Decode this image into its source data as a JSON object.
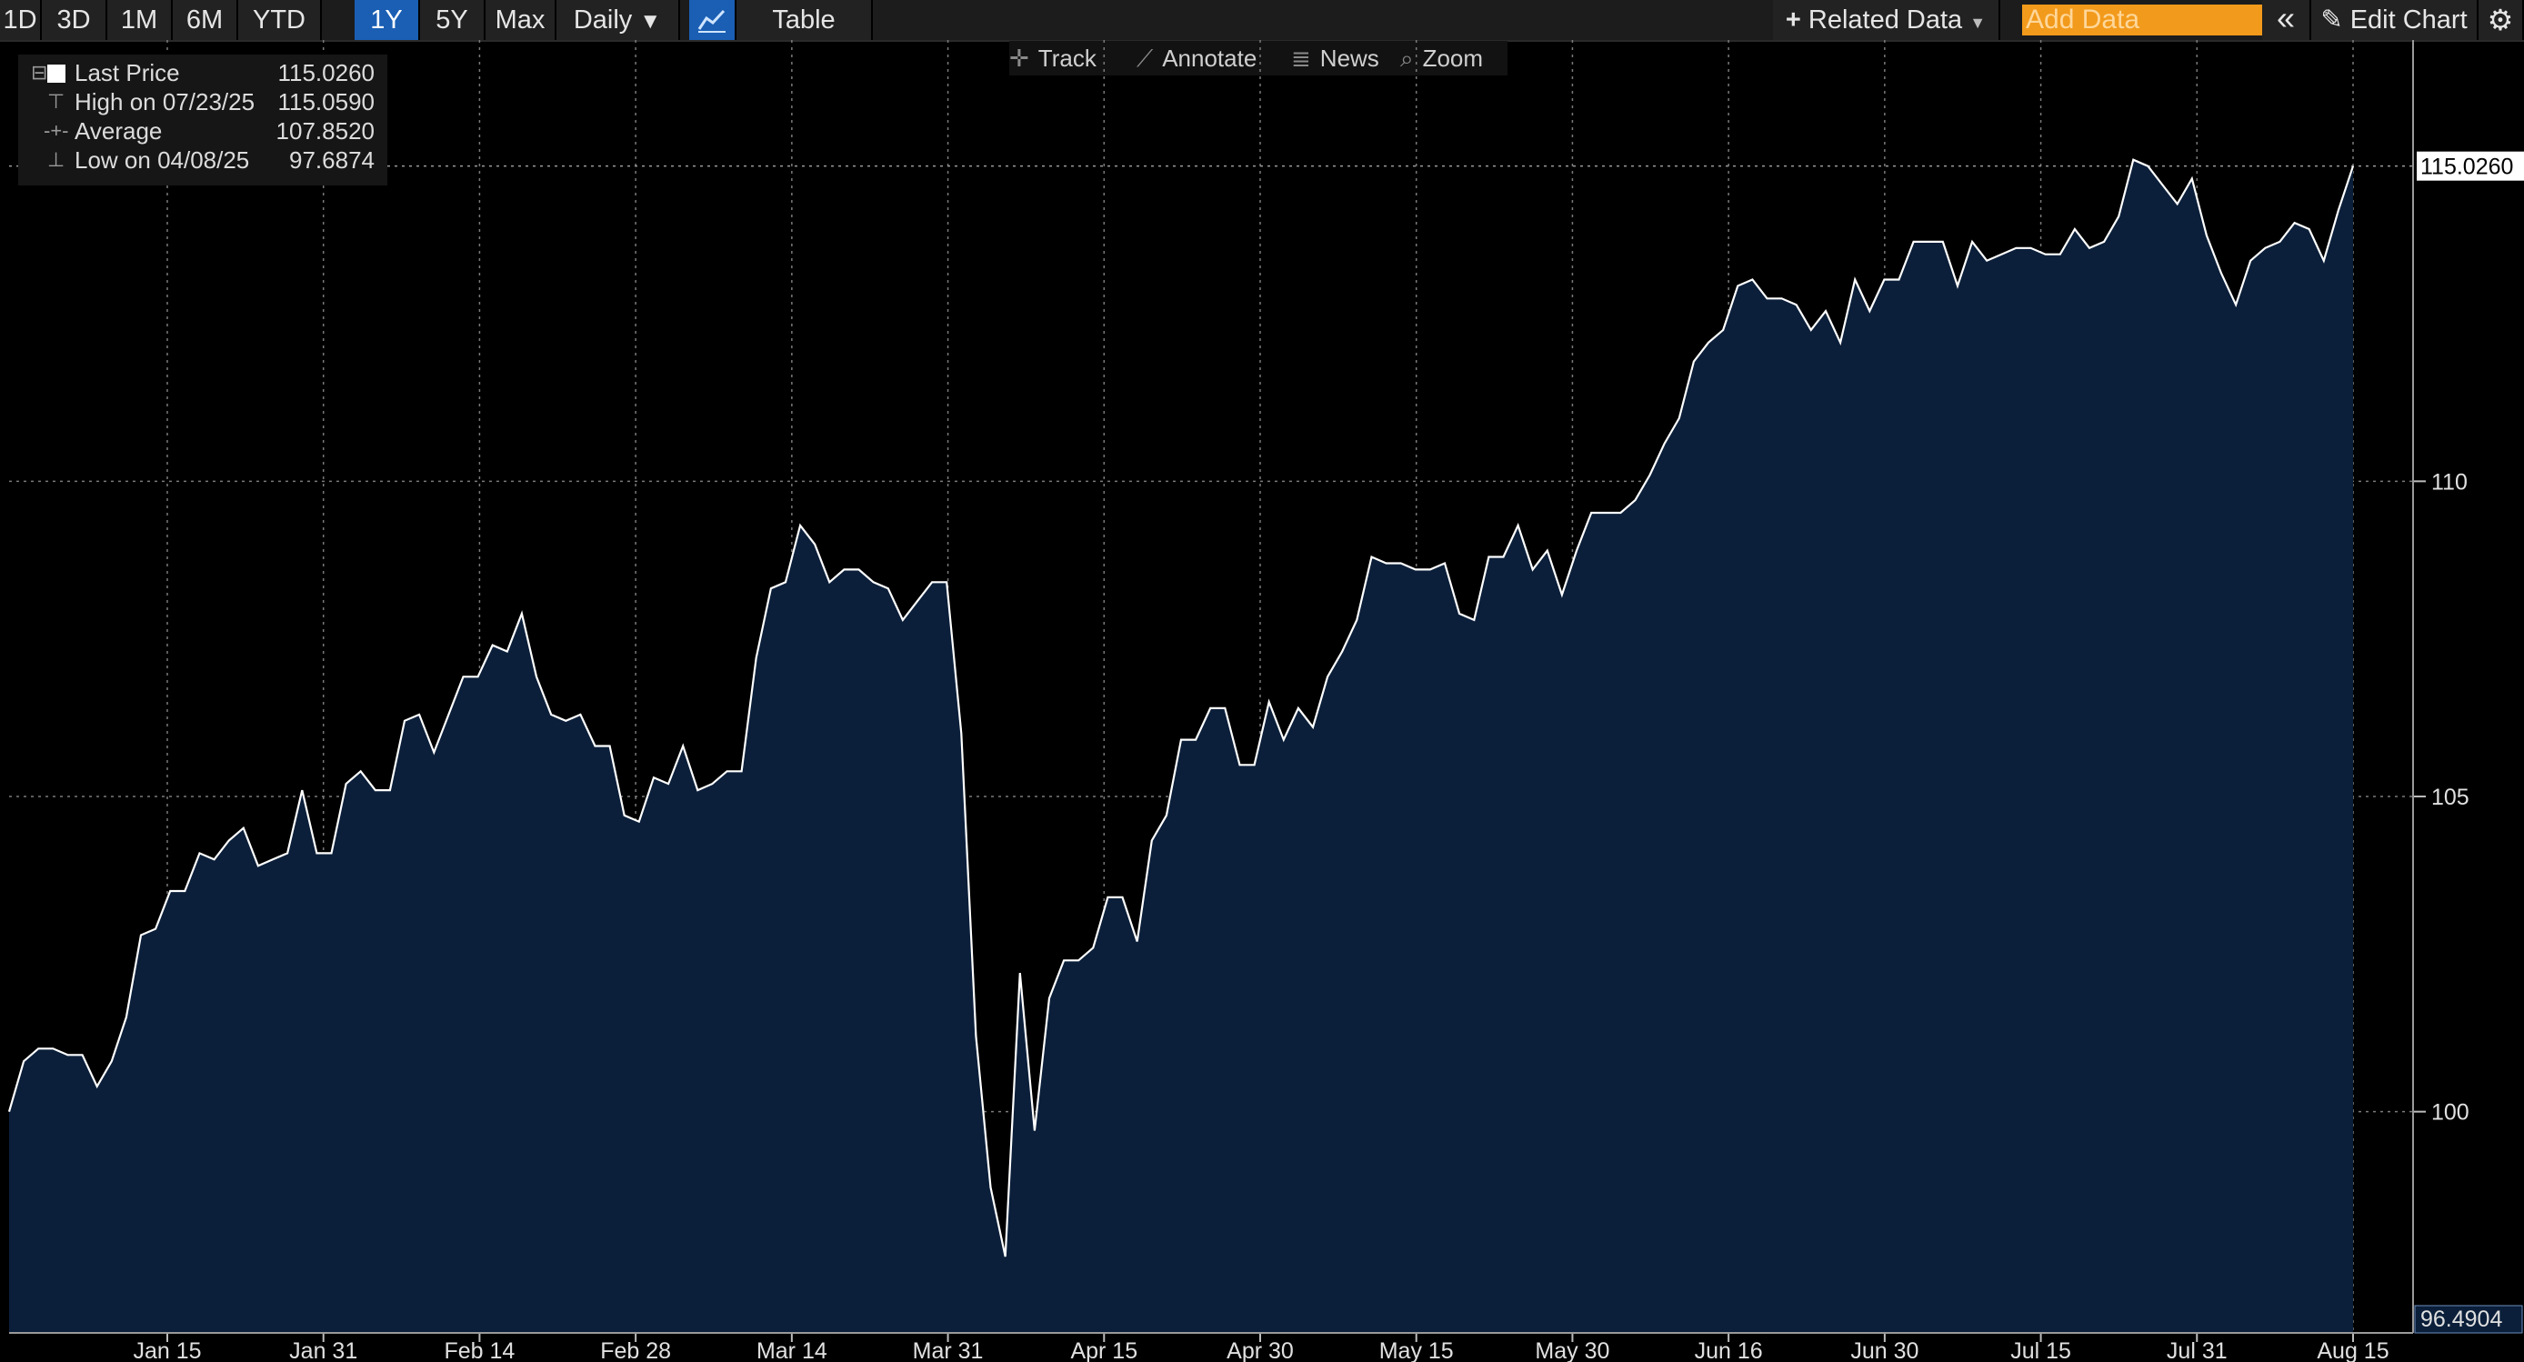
{
  "toolbar": {
    "periods": [
      "1D",
      "3D",
      "1M",
      "6M",
      "YTD",
      "1Y",
      "5Y",
      "Max"
    ],
    "active_period": "1Y",
    "frequency": "Daily",
    "frequency_caret": "▼",
    "table_label": "Table",
    "related_data": "Related Data",
    "add_data_placeholder": "Add Data",
    "collapse_glyph": "«",
    "edit_chart": "Edit Chart",
    "settings_glyph": "⚙"
  },
  "subtools": {
    "track": "Track",
    "annotate": "Annotate",
    "news": "News",
    "zoom": "Zoom"
  },
  "legend": {
    "last_price": {
      "label": "Last Price",
      "value": "115.0260"
    },
    "high": {
      "label": "High on 07/23/25",
      "value": "115.0590"
    },
    "average": {
      "label": "Average",
      "value": "107.8520"
    },
    "low": {
      "label": "Low on 04/08/25",
      "value": "97.6874"
    }
  },
  "colors": {
    "background": "#000000",
    "area_fill": "#0b1f3a",
    "line": "#ffffff",
    "accent": "#1a5fb4",
    "add_data": "#f29a1b"
  },
  "chart_data": {
    "type": "area",
    "series": [
      {
        "name": "Last Price",
        "values": [
          100.0,
          100.8,
          101.0,
          101.0,
          100.9,
          100.9,
          100.4,
          100.8,
          101.5,
          102.8,
          102.9,
          103.5,
          103.5,
          104.1,
          104.0,
          104.3,
          104.5,
          103.9,
          104.0,
          104.1,
          105.1,
          104.1,
          104.1,
          105.2,
          105.4,
          105.1,
          105.1,
          106.2,
          106.3,
          105.7,
          106.3,
          106.9,
          106.9,
          107.4,
          107.3,
          107.9,
          106.9,
          106.3,
          106.2,
          106.3,
          105.8,
          105.8,
          104.7,
          104.6,
          105.3,
          105.2,
          105.8,
          105.1,
          105.2,
          105.4,
          105.4,
          107.2,
          108.3,
          108.4,
          109.3,
          109.0,
          108.4,
          108.6,
          108.6,
          108.4,
          108.3,
          107.8,
          108.1,
          108.4,
          108.4,
          106.0,
          101.2,
          98.8,
          97.7,
          102.2,
          99.7,
          101.8,
          102.4,
          102.4,
          102.6,
          103.4,
          103.4,
          102.7,
          104.3,
          104.7,
          105.9,
          105.9,
          106.4,
          106.4,
          105.5,
          105.5,
          106.5,
          105.9,
          106.4,
          106.1,
          106.9,
          107.3,
          107.8,
          108.8,
          108.7,
          108.7,
          108.6,
          108.6,
          108.7,
          107.9,
          107.8,
          108.8,
          108.8,
          109.3,
          108.6,
          108.9,
          108.2,
          108.9,
          109.5,
          109.5,
          109.5,
          109.7,
          110.1,
          110.6,
          111.0,
          111.9,
          112.2,
          112.4,
          113.1,
          113.2,
          112.9,
          112.9,
          112.8,
          112.4,
          112.7,
          112.2,
          113.2,
          112.7,
          113.2,
          113.2,
          113.8,
          113.8,
          113.8,
          113.1,
          113.8,
          113.5,
          113.6,
          113.7,
          113.7,
          113.6,
          113.6,
          114.0,
          113.7,
          113.8,
          114.2,
          115.1,
          115.0,
          114.7,
          114.4,
          114.8,
          113.9,
          113.3,
          112.8,
          113.5,
          113.7,
          113.8,
          114.1,
          114.0,
          113.5,
          114.3,
          115.0
        ]
      }
    ],
    "x_tick_labels": [
      "Jan 15",
      "Jan 31",
      "Feb 14",
      "Feb 28",
      "Mar 14",
      "Mar 31",
      "Apr 15",
      "Apr 30",
      "May 15",
      "May 30",
      "Jun 16",
      "Jun 30",
      "Jul 15",
      "Jul 31",
      "Aug 15"
    ],
    "y_ticks": [
      100,
      105,
      110
    ],
    "ylim": [
      96.4904,
      117.0
    ],
    "y_min_label": "96.4904",
    "last_value_label": "115.0260",
    "grid": true,
    "legend_position": "top-left"
  }
}
